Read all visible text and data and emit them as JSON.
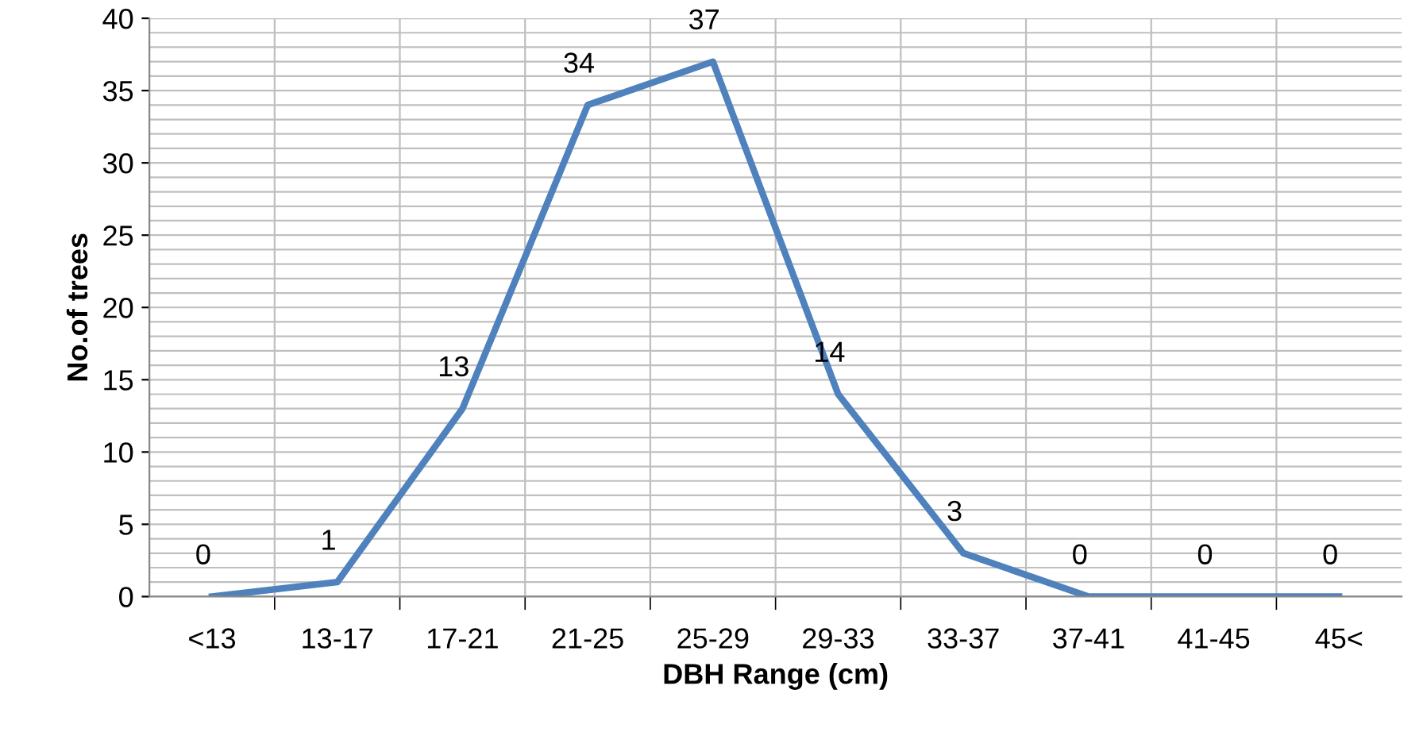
{
  "chart_data": {
    "type": "line",
    "xlabel": "DBH Range (cm)",
    "ylabel": "No.of trees",
    "categories": [
      "<13",
      "13-17",
      "17-21",
      "21-25",
      "25-29",
      "29-33",
      "33-37",
      "37-41",
      "41-45",
      "45<"
    ],
    "series": [
      {
        "color": "#4f81bd",
        "values": [
          0,
          1,
          13,
          34,
          37,
          14,
          3,
          0,
          0,
          0
        ]
      }
    ],
    "ylim": [
      0,
      40
    ],
    "yticks": [
      0,
      5,
      10,
      15,
      20,
      25,
      30,
      35,
      40
    ],
    "grid": true,
    "data_labels": true,
    "marker": "none",
    "line_style": "solid"
  }
}
